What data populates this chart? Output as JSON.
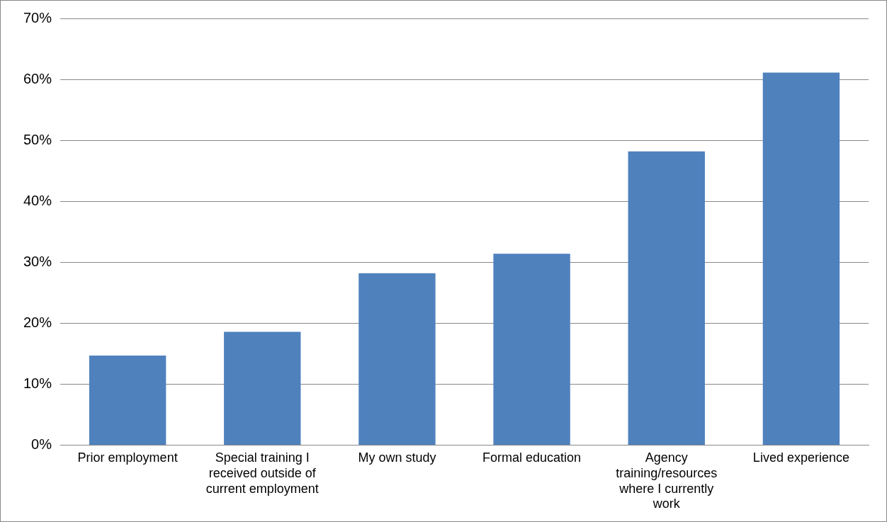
{
  "chart_data": {
    "type": "bar",
    "categories": [
      "Prior employment",
      "Special training I received outside of current employment",
      "My own study",
      "Formal education",
      "Agency training/resources where I currently work",
      "Lived experience"
    ],
    "values": [
      14.7,
      18.6,
      28.2,
      31.4,
      48.2,
      61.1
    ],
    "color": "#4f81bd",
    "ylim": [
      0,
      70
    ],
    "yticks": [
      {
        "value": 0,
        "label": "0%"
      },
      {
        "value": 10,
        "label": "10%"
      },
      {
        "value": 20,
        "label": "20%"
      },
      {
        "value": 30,
        "label": "30%"
      },
      {
        "value": 40,
        "label": "40%"
      },
      {
        "value": 50,
        "label": "50%"
      },
      {
        "value": 60,
        "label": "60%"
      },
      {
        "value": 70,
        "label": "70%"
      }
    ],
    "grid": "y",
    "legend": false
  }
}
